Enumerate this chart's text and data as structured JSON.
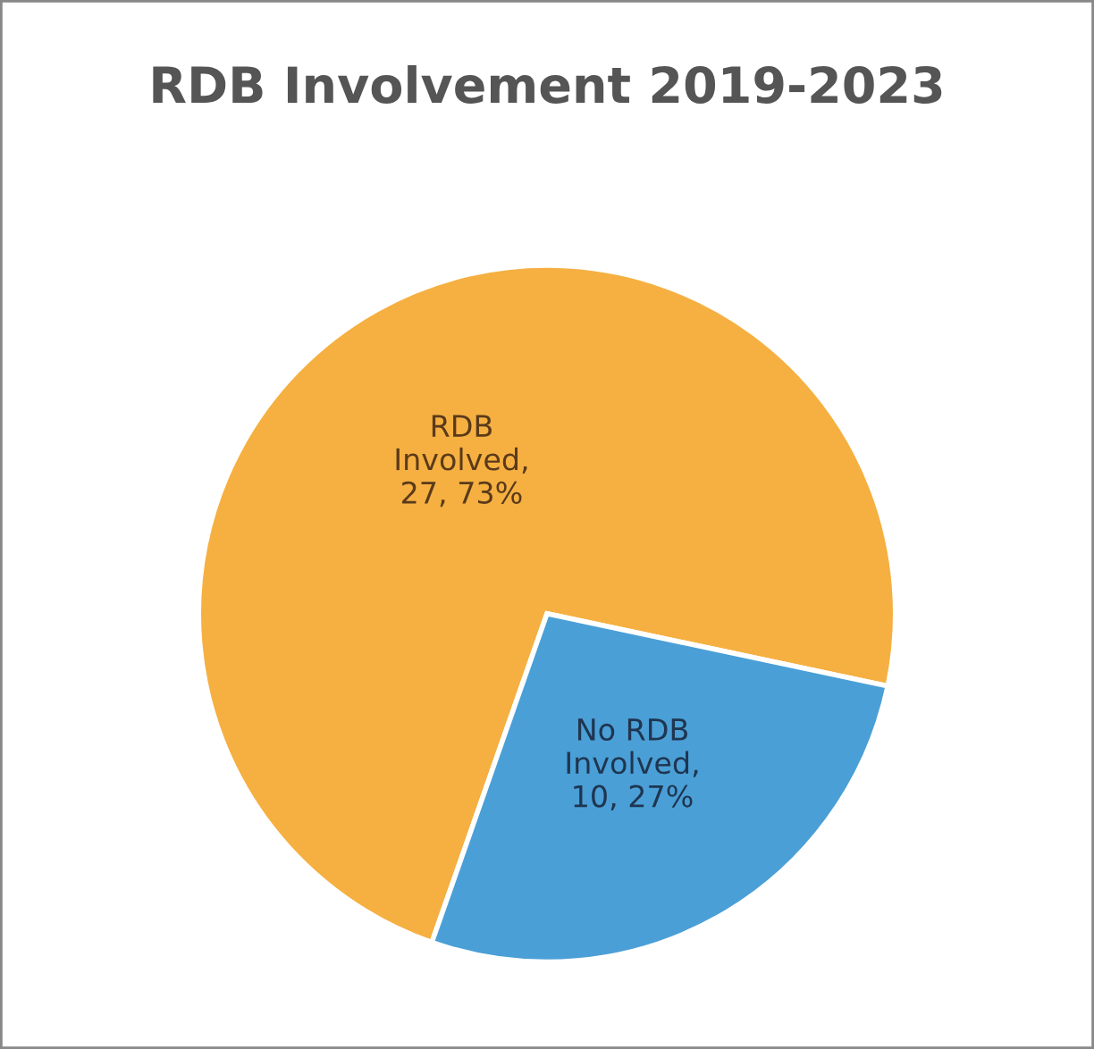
{
  "chart_data": {
    "type": "pie",
    "title": "RDB Involvement 2019-2023",
    "categories": [
      "RDB Involved",
      "No RDB Involved"
    ],
    "values": [
      27,
      10
    ],
    "value_labels": [
      ", 27, 73%",
      ", 10, 27%"
    ],
    "colors": [
      "#f5b041",
      "#4a9fd6"
    ],
    "legend": false
  }
}
